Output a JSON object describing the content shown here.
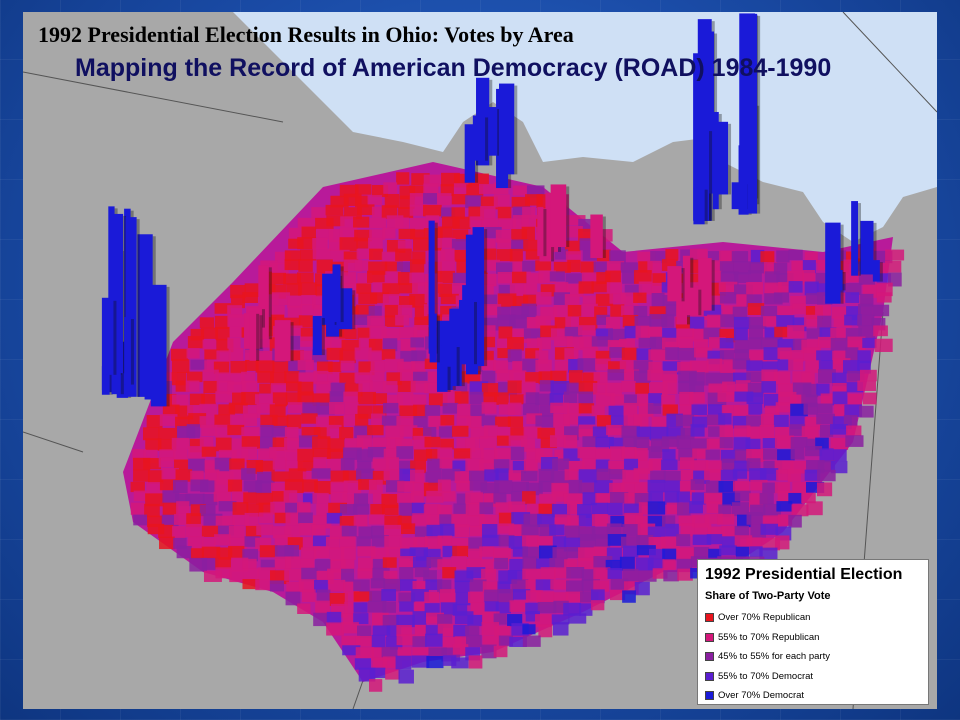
{
  "map": {
    "title": "1992 Presidential Election Results in Ohio: Votes by Area",
    "subtitle": "Mapping the Record of American Democracy (ROAD) 1984-1990"
  },
  "legend": {
    "title": "1992 Presidential Election",
    "subtitle": "Share of Two-Party Vote",
    "items": [
      {
        "label": "Over 70% Republican",
        "color": "#e8141e"
      },
      {
        "label": "55% to 70% Republican",
        "color": "#d4177a"
      },
      {
        "label": "45% to 55% for each party",
        "color": "#8a1fa0"
      },
      {
        "label": "55% to 70% Democrat",
        "color": "#5a1ed0"
      },
      {
        "label": "Over 70% Democrat",
        "color": "#1a1ad8"
      }
    ]
  },
  "colors": {
    "background_land": "#a8a8a8",
    "lake": "#cfe0f5",
    "slide_background": "#1d4fa8"
  }
}
